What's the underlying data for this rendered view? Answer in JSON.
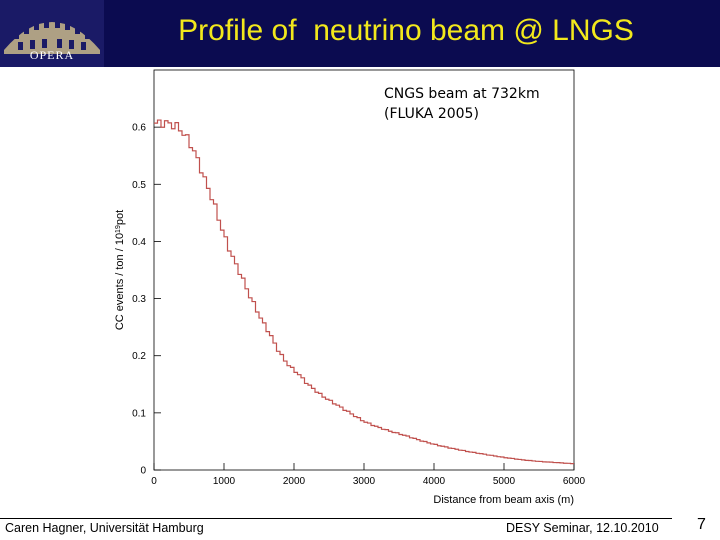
{
  "header": {
    "title": "Profile of  neutrino beam @ LNGS",
    "logo_text": "OPERA",
    "background_color": "#0b0b50",
    "title_color": "#f2e81c"
  },
  "footer": {
    "left": "Caren Hagner, Universität Hamburg",
    "center": "DESY Seminar, 12.10.2010",
    "page_number": "7"
  },
  "chart_data": {
    "type": "line",
    "title": "",
    "xlabel": "Distance from beam axis (m)",
    "ylabel_parts": [
      "CC events / ton / 10",
      "19",
      "pot"
    ],
    "annotation": [
      "CNGS beam at 732km",
      "(FLUKA 2005)"
    ],
    "xlim": [
      0,
      6000
    ],
    "ylim": [
      0,
      0.7
    ],
    "x_ticks": [
      0,
      1000,
      2000,
      3000,
      4000,
      5000,
      6000
    ],
    "y_ticks": [
      0,
      0.1,
      0.2,
      0.3,
      0.4,
      0.5,
      0.6
    ],
    "y_tick_labels": [
      "0",
      "0.1",
      "0.2",
      "0.3",
      "0.4",
      "0.5",
      "0.6"
    ],
    "grid": false,
    "line_color": "#c0504d",
    "series": [
      {
        "x": [
          0,
          200,
          350,
          450,
          550,
          650,
          750,
          850,
          950,
          1050,
          1150,
          1250,
          1350,
          1450,
          1550,
          1650,
          1750,
          1850,
          1950,
          2050,
          2200,
          2400,
          2600,
          2800,
          3000,
          3200,
          3400,
          3600,
          3800,
          4000,
          4250,
          4500,
          4750,
          5000,
          5250,
          5500,
          5750,
          6000
        ],
        "y": [
          0.607,
          0.607,
          0.6,
          0.585,
          0.565,
          0.535,
          0.5,
          0.47,
          0.43,
          0.395,
          0.365,
          0.34,
          0.31,
          0.285,
          0.26,
          0.24,
          0.215,
          0.195,
          0.18,
          0.17,
          0.15,
          0.13,
          0.115,
          0.1,
          0.085,
          0.075,
          0.067,
          0.06,
          0.052,
          0.045,
          0.038,
          0.032,
          0.027,
          0.022,
          0.018,
          0.015,
          0.013,
          0.011
        ]
      }
    ]
  }
}
